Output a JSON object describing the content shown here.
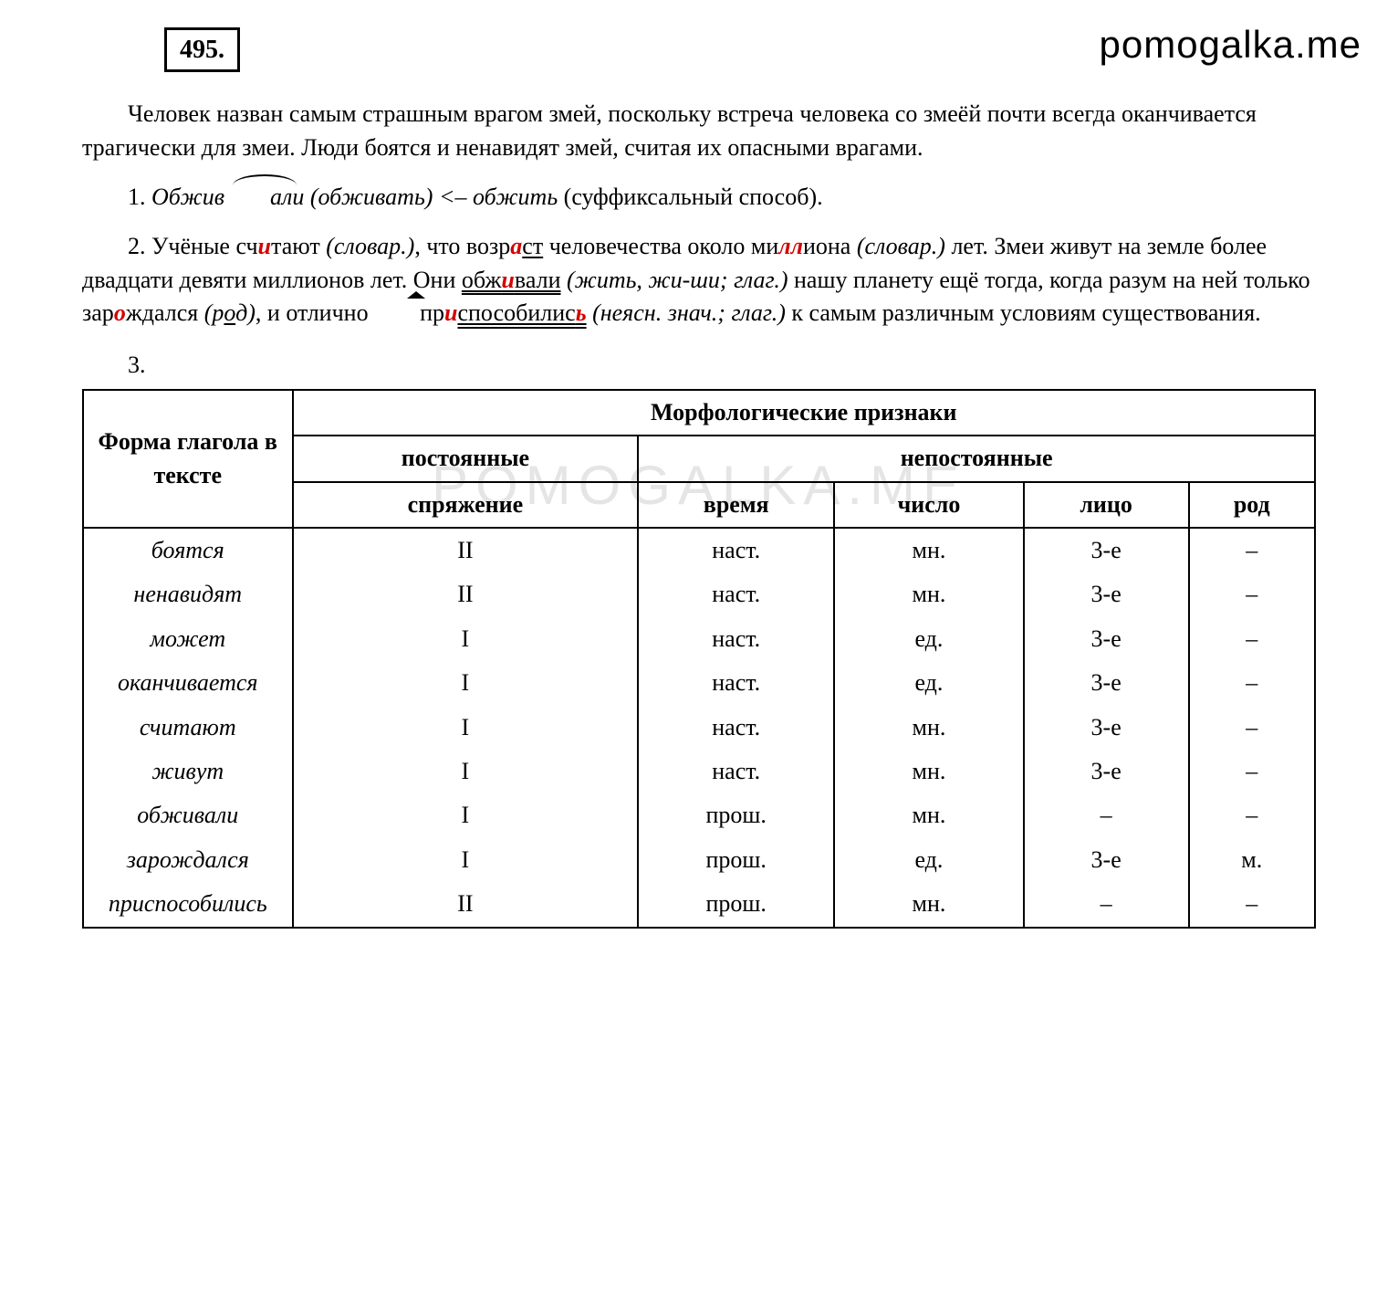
{
  "watermark": {
    "top": "pomogalka.me",
    "mid": "POMOGALKA.ME"
  },
  "exercise_number": "495.",
  "intro_paragraph": "Человек назван самым страшным врагом змей, поскольку встреча человека со змеёй почти всегда оканчивается трагически для змеи. Люди боятся и ненавидят змей, считая их опасными врагами.",
  "item1": {
    "prefix": "1. ",
    "word1": "Обжив",
    "word1_suffix": "али",
    "paren1": " (обживать)",
    "arrow": " <– ",
    "word2": "обжить",
    "note": " (суффиксальный способ)."
  },
  "item2": {
    "prefix": "2. Учёные сч",
    "h1": "и",
    "t1": "тают ",
    "p1": "(словар.)",
    "t2": ", что возр",
    "h2": "а",
    "t3": "ст",
    "t3b": " человечества около ми",
    "h3": "лл",
    "t4": "иона ",
    "p2": "(словар.)",
    "t5": " лет. Змеи живут на земле более двадцати девяти миллионов лет. Они ",
    "w_obzh_pre": "обж",
    "w_obzh_h": "и",
    "w_obzh_suf": "вали",
    "p3": " (жить, жи-ши; глаг.)",
    "t6": " нашу планету ещё тогда, когда разум на ней только зар",
    "h4": "о",
    "t7": "ждался ",
    "p4": "(р",
    "p4u": "о",
    "p4b": "д)",
    "t8": ", и отлично ",
    "wp_pre": "пр",
    "wp_h": "и",
    "wp_mid": "способилис",
    "wp_end": "ь",
    "p5": " (неясн. знач.; глаг.)",
    "t9": " к самым различным условиям существования."
  },
  "section3_label": "3.",
  "table": {
    "header": {
      "col1": "Форма глагола в тексте",
      "group": "Морфологические признаки",
      "sub1": "постоянные",
      "sub2": "непостоянные",
      "c_spr": "спряжение",
      "c_vr": "время",
      "c_ch": "число",
      "c_li": "лицо",
      "c_rod": "род"
    },
    "rows": [
      {
        "verb": "боятся",
        "spr": "II",
        "vr": "наст.",
        "ch": "мн.",
        "li": "3-е",
        "rod": "–"
      },
      {
        "verb": "ненавидят",
        "spr": "II",
        "vr": "наст.",
        "ch": "мн.",
        "li": "3-е",
        "rod": "–"
      },
      {
        "verb": "может",
        "spr": "I",
        "vr": "наст.",
        "ch": "ед.",
        "li": "3-е",
        "rod": "–"
      },
      {
        "verb": "оканчивается",
        "spr": "I",
        "vr": "наст.",
        "ch": "ед.",
        "li": "3-е",
        "rod": "–"
      },
      {
        "verb": "считают",
        "spr": "I",
        "vr": "наст.",
        "ch": "мн.",
        "li": "3-е",
        "rod": "–"
      },
      {
        "verb": "живут",
        "spr": "I",
        "vr": "наст.",
        "ch": "мн.",
        "li": "3-е",
        "rod": "–"
      },
      {
        "verb": "обживали",
        "spr": "I",
        "vr": "прош.",
        "ch": "мн.",
        "li": "–",
        "rod": "–"
      },
      {
        "verb": "зарождался",
        "spr": "I",
        "vr": "прош.",
        "ch": "ед.",
        "li": "3-е",
        "rod": "м."
      },
      {
        "verb": "приспособились",
        "spr": "II",
        "vr": "прош.",
        "ch": "мн.",
        "li": "–",
        "rod": "–"
      }
    ]
  },
  "colors": {
    "red": "#d40000",
    "border": "#000000",
    "text": "#000000",
    "bg": "#ffffff"
  }
}
